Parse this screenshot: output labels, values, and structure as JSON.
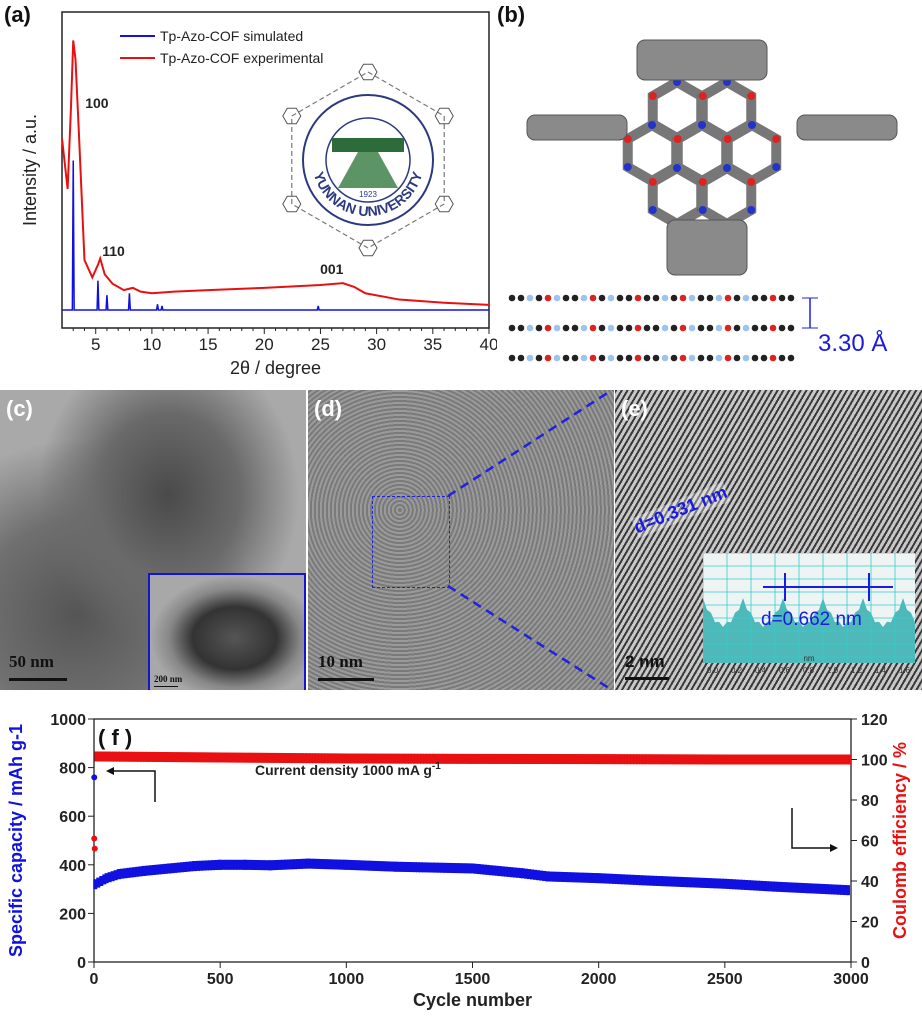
{
  "panels": {
    "a": {
      "label": "(a)"
    },
    "b": {
      "label": "(b)",
      "spacing": "3.30 Å"
    },
    "c": {
      "label": "(c)",
      "scale": "50 nm",
      "inset_scale": "200 nm"
    },
    "d": {
      "label": "(d)",
      "scale": "10 nm"
    },
    "e": {
      "label": "(e)",
      "scale": "2 nm",
      "d_spacing": "d=0.331 nm",
      "inset_d": "d=0.662 nm",
      "inset_ticks": [
        "0.0",
        "0.2",
        "0.4",
        "0.6",
        "0.8",
        "1.0",
        "1.2",
        "1.4",
        "1.6"
      ],
      "inset_unit": "nm"
    },
    "f": {
      "label": "( f )",
      "annotation": "Current density 1000 mA g",
      "annotation_sup": "-1"
    }
  },
  "logo": {
    "text": "YUNNAN UNIVERSITY",
    "year": "1923"
  },
  "colors": {
    "blue": "#1010e0",
    "red": "#e81010",
    "teal": "#4fb8b8"
  },
  "chart_data": [
    {
      "type": "line",
      "title": "",
      "xlabel": "2θ / degree",
      "ylabel": "Intensity / a.u.",
      "xlim": [
        2,
        40
      ],
      "ylim": [
        0,
        100
      ],
      "xticks": [
        5,
        10,
        15,
        20,
        25,
        30,
        35,
        40
      ],
      "legend": "top-center",
      "peak_labels": [
        {
          "text": "100",
          "x": 3.0
        },
        {
          "text": "110",
          "x": 5.4
        },
        {
          "text": "001",
          "x": 25.5
        }
      ],
      "series": [
        {
          "name": "Tp-Azo-COF simulated",
          "color": "#1010e0",
          "baseline": 5.7,
          "peaks": [
            [
              3.0,
              53
            ],
            [
              5.2,
              15
            ],
            [
              6.0,
              10.4
            ],
            [
              8.0,
              11
            ],
            [
              10.5,
              7.5
            ],
            [
              10.9,
              7
            ],
            [
              24.8,
              7
            ]
          ]
        },
        {
          "name": "Tp-Azo-COF experimental",
          "color": "#e81010",
          "x": [
            2.0,
            2.5,
            2.8,
            3.0,
            3.2,
            3.5,
            4.0,
            4.7,
            5.2,
            5.4,
            5.8,
            6.5,
            7.5,
            8.3,
            9,
            10,
            12,
            15,
            20,
            25,
            27,
            28,
            29,
            32,
            36,
            40
          ],
          "y": [
            60,
            44,
            70,
            91,
            85,
            62,
            21.5,
            16,
            20,
            22,
            17,
            14,
            12,
            12.7,
            11.5,
            11,
            11.5,
            12,
            12.7,
            13.6,
            14.2,
            13,
            11,
            9,
            8,
            7.3
          ]
        }
      ]
    },
    {
      "type": "scatter",
      "title": "",
      "xlabel": "Cycle number",
      "ylabel": "Specific capacity / mAh g-1",
      "y2label": "Coulomb efficiency / %",
      "xlim": [
        0,
        3000
      ],
      "ylim": [
        0,
        1000
      ],
      "y2lim": [
        0,
        120
      ],
      "xticks": [
        0,
        500,
        1000,
        1500,
        2000,
        2500,
        3000
      ],
      "yticks": [
        0,
        200,
        400,
        600,
        800,
        1000
      ],
      "y2ticks": [
        0,
        20,
        40,
        60,
        80,
        100,
        120
      ],
      "series": [
        {
          "name": "Specific capacity",
          "axis": "left",
          "color": "#1010e0",
          "x": [
            1,
            5,
            50,
            100,
            200,
            300,
            400,
            500,
            600,
            700,
            850,
            1000,
            1200,
            1500,
            1700,
            1800,
            2000,
            2200,
            2500,
            2700,
            3000
          ],
          "y": [
            760,
            320,
            345,
            362,
            375,
            385,
            395,
            400,
            400,
            398,
            405,
            400,
            392,
            385,
            365,
            352,
            345,
            335,
            322,
            310,
            295
          ]
        },
        {
          "name": "Coulomb efficiency",
          "axis": "right",
          "color": "#e81010",
          "x": [
            1,
            3,
            10,
            500,
            1000,
            1500,
            2000,
            2500,
            3000
          ],
          "y": [
            61,
            56,
            101.5,
            101,
            100.5,
            100.3,
            100.2,
            100,
            100
          ]
        }
      ]
    }
  ]
}
